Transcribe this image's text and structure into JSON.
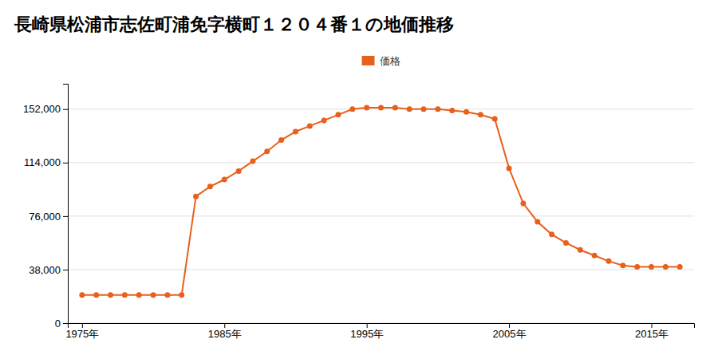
{
  "chart_data": {
    "type": "line",
    "title": "長崎県松浦市志佐町浦免字横町１２０４番１の地価推移",
    "x": [
      1975,
      1976,
      1977,
      1978,
      1979,
      1980,
      1981,
      1982,
      1983,
      1984,
      1985,
      1986,
      1987,
      1988,
      1989,
      1990,
      1991,
      1992,
      1993,
      1994,
      1995,
      1996,
      1997,
      1998,
      1999,
      2000,
      2001,
      2002,
      2003,
      2004,
      2005,
      2006,
      2007,
      2008,
      2009,
      2010,
      2011,
      2012,
      2013,
      2014,
      2015,
      2016,
      2017
    ],
    "series": [
      {
        "name": "価格",
        "color": "#e8601c",
        "marker": "circle",
        "values": [
          20000,
          20000,
          20000,
          20000,
          20000,
          20000,
          20000,
          20000,
          90000,
          97000,
          102000,
          108000,
          115000,
          122000,
          130000,
          136000,
          140000,
          144000,
          148000,
          152000,
          153000,
          153000,
          153000,
          152000,
          152000,
          152000,
          151000,
          150000,
          148000,
          145000,
          110000,
          85000,
          72000,
          63000,
          57000,
          52000,
          48000,
          44000,
          41000,
          40000,
          40000,
          40000,
          40000
        ]
      }
    ],
    "xlim": [
      1974,
      2018
    ],
    "xticks": [
      {
        "value": 1975,
        "label": "1975年"
      },
      {
        "value": 1985,
        "label": "1985年"
      },
      {
        "value": 1995,
        "label": "1995年"
      },
      {
        "value": 2005,
        "label": "2005年"
      },
      {
        "value": 2015,
        "label": "2015年"
      }
    ],
    "ylim": [
      0,
      170000
    ],
    "yticks": [
      0,
      {
        "value": 38000,
        "label": "38,000"
      },
      {
        "value": 76000,
        "label": "76,000"
      },
      {
        "value": 114000,
        "label": "114,000"
      },
      {
        "value": 152000,
        "label": "152,000"
      }
    ],
    "grid": true,
    "legend": "top"
  }
}
